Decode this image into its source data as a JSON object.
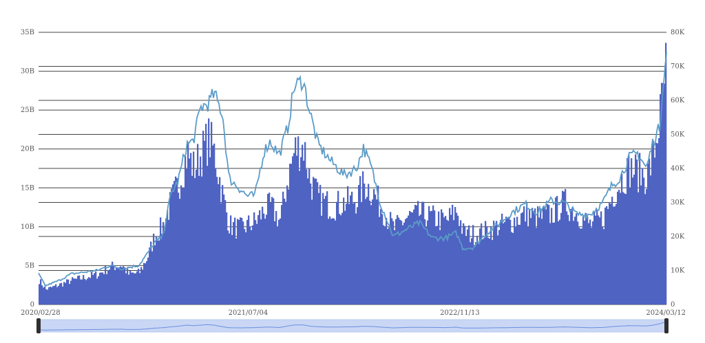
{
  "chart_data": {
    "type": "bar",
    "title": "",
    "xlabel": "",
    "ylabel": "",
    "left_axis": {
      "ylim": [
        0,
        35000000000
      ],
      "ticks": [
        "0",
        "5B",
        "10B",
        "15B",
        "20B",
        "25B",
        "30B",
        "35B"
      ]
    },
    "right_axis": {
      "ylim": [
        0,
        80000
      ],
      "ticks": [
        "0",
        "10K",
        "20K",
        "30K",
        "40K",
        "50K",
        "60K",
        "70K",
        "80K"
      ]
    },
    "x_tick_labels": [
      "2020/02/28",
      "2021/07/04",
      "2022/11/13",
      "2024/03/12"
    ],
    "x_range": [
      "2020/02/28",
      "2024/03/12"
    ],
    "grid": true,
    "colors": {
      "bars": "#4f63c2",
      "line": "#5b9bc8",
      "slider_fill": "#c9d7f5",
      "slider_line": "#6b8ee0",
      "handle": "#2f2f2f"
    },
    "series": [
      {
        "kind": "bar",
        "axis": "left",
        "points": [
          [
            "2020/02/28",
            3200000000.0
          ],
          [
            "2020/03/15",
            2000000000.0
          ],
          [
            "2020/04/15",
            2600000000.0
          ],
          [
            "2020/05/15",
            3200000000.0
          ],
          [
            "2020/06/15",
            3600000000.0
          ],
          [
            "2020/07/15",
            4000000000.0
          ],
          [
            "2020/08/15",
            5000000000.0
          ],
          [
            "2020/09/10",
            5200000000.0
          ],
          [
            "2020/09/25",
            4000000000.0
          ],
          [
            "2020/10/20",
            4200000000.0
          ],
          [
            "2020/11/10",
            6500000000.0
          ],
          [
            "2020/11/25",
            9000000000.0
          ],
          [
            "2020/12/15",
            10500000000.0
          ],
          [
            "2021/01/05",
            14000000000.0
          ],
          [
            "2021/01/20",
            16000000000.0
          ],
          [
            "2021/02/10",
            20000000000.0
          ],
          [
            "2021/02/25",
            18000000000.0
          ],
          [
            "2021/03/15",
            20000000000.0
          ],
          [
            "2021/04/01",
            22000000000.0
          ],
          [
            "2021/04/15",
            20000000000.0
          ],
          [
            "2021/05/05",
            14000000000.0
          ],
          [
            "2021/05/20",
            10500000000.0
          ],
          [
            "2021/06/15",
            10000000000.0
          ],
          [
            "2021/07/01",
            10500000000.0
          ],
          [
            "2021/07/20",
            11000000000.0
          ],
          [
            "2021/08/10",
            12500000000.0
          ],
          [
            "2021/08/25",
            13000000000.0
          ],
          [
            "2021/09/15",
            11000000000.0
          ],
          [
            "2021/10/05",
            17000000000.0
          ],
          [
            "2021/10/20",
            20500000000.0
          ],
          [
            "2021/11/10",
            21000000000.0
          ],
          [
            "2021/11/25",
            16500000000.0
          ],
          [
            "2021/12/15",
            14000000000.0
          ],
          [
            "2022/01/15",
            13000000000.0
          ],
          [
            "2022/02/15",
            13500000000.0
          ],
          [
            "2022/03/15",
            14000000000.0
          ],
          [
            "2022/04/01",
            16000000000.0
          ],
          [
            "2022/04/20",
            15000000000.0
          ],
          [
            "2022/05/10",
            13000000000.0
          ],
          [
            "2022/06/10",
            10000000000.0
          ],
          [
            "2022/07/10",
            11500000000.0
          ],
          [
            "2022/08/10",
            12000000000.0
          ],
          [
            "2022/09/10",
            11500000000.0
          ],
          [
            "2022/10/10",
            11000000000.0
          ],
          [
            "2022/11/05",
            12500000000.0
          ],
          [
            "2022/11/20",
            9500000000.0
          ],
          [
            "2022/12/15",
            9300000000.0
          ],
          [
            "2023/01/15",
            9800000000.0
          ],
          [
            "2023/02/15",
            10500000000.0
          ],
          [
            "2023/03/15",
            11000000000.0
          ],
          [
            "2023/04/15",
            12000000000.0
          ],
          [
            "2023/05/15",
            11500000000.0
          ],
          [
            "2023/06/15",
            12000000000.0
          ],
          [
            "2023/07/15",
            13500000000.0
          ],
          [
            "2023/08/15",
            12000000000.0
          ],
          [
            "2023/09/15",
            10500000000.0
          ],
          [
            "2023/10/15",
            11500000000.0
          ],
          [
            "2023/11/05",
            14500000000.0
          ],
          [
            "2023/11/25",
            16500000000.0
          ],
          [
            "2023/12/15",
            18000000000.0
          ],
          [
            "2024/01/05",
            17500000000.0
          ],
          [
            "2024/01/25",
            17000000000.0
          ],
          [
            "2024/02/10",
            20000000000.0
          ],
          [
            "2024/02/25",
            25000000000.0
          ],
          [
            "2024/03/05",
            29000000000.0
          ],
          [
            "2024/03/12",
            33000000000.0
          ]
        ]
      },
      {
        "kind": "line",
        "axis": "right",
        "points": [
          [
            "2020/02/28",
            9000
          ],
          [
            "2020/03/15",
            5500
          ],
          [
            "2020/04/15",
            7000
          ],
          [
            "2020/05/15",
            9000
          ],
          [
            "2020/06/15",
            9500
          ],
          [
            "2020/07/15",
            10000
          ],
          [
            "2020/08/15",
            11500
          ],
          [
            "2020/09/10",
            10500
          ],
          [
            "2020/10/20",
            11500
          ],
          [
            "2020/11/10",
            15000
          ],
          [
            "2020/11/25",
            18000
          ],
          [
            "2020/12/15",
            20000
          ],
          [
            "2021/01/05",
            33000
          ],
          [
            "2021/01/20",
            36000
          ],
          [
            "2021/02/10",
            47000
          ],
          [
            "2021/02/25",
            48000
          ],
          [
            "2021/03/15",
            58000
          ],
          [
            "2021/04/01",
            59000
          ],
          [
            "2021/04/15",
            62000
          ],
          [
            "2021/05/05",
            56000
          ],
          [
            "2021/05/20",
            37000
          ],
          [
            "2021/06/15",
            34000
          ],
          [
            "2021/07/01",
            32000
          ],
          [
            "2021/07/20",
            32000
          ],
          [
            "2021/08/10",
            45000
          ],
          [
            "2021/08/25",
            48000
          ],
          [
            "2021/09/15",
            44000
          ],
          [
            "2021/10/05",
            52000
          ],
          [
            "2021/10/20",
            64000
          ],
          [
            "2021/11/10",
            66000
          ],
          [
            "2021/11/25",
            57000
          ],
          [
            "2021/12/15",
            47000
          ],
          [
            "2022/01/15",
            42000
          ],
          [
            "2022/02/15",
            38000
          ],
          [
            "2022/03/15",
            40000
          ],
          [
            "2022/04/01",
            46000
          ],
          [
            "2022/04/20",
            40000
          ],
          [
            "2022/05/10",
            30000
          ],
          [
            "2022/06/10",
            20000
          ],
          [
            "2022/07/10",
            22000
          ],
          [
            "2022/08/10",
            24000
          ],
          [
            "2022/09/10",
            19500
          ],
          [
            "2022/10/10",
            19500
          ],
          [
            "2022/11/05",
            21000
          ],
          [
            "2022/11/20",
            16500
          ],
          [
            "2022/12/15",
            16800
          ],
          [
            "2023/01/15",
            21000
          ],
          [
            "2023/02/15",
            24000
          ],
          [
            "2023/03/15",
            27000
          ],
          [
            "2023/04/15",
            29500
          ],
          [
            "2023/05/15",
            27000
          ],
          [
            "2023/06/15",
            30500
          ],
          [
            "2023/07/15",
            30000
          ],
          [
            "2023/08/15",
            26500
          ],
          [
            "2023/09/15",
            26500
          ],
          [
            "2023/10/15",
            30000
          ],
          [
            "2023/11/05",
            35000
          ],
          [
            "2023/11/25",
            37500
          ],
          [
            "2023/12/15",
            43000
          ],
          [
            "2024/01/05",
            44500
          ],
          [
            "2024/01/25",
            40000
          ],
          [
            "2024/02/10",
            48000
          ],
          [
            "2024/02/25",
            52000
          ],
          [
            "2024/03/05",
            67000
          ],
          [
            "2024/03/12",
            73000
          ]
        ]
      }
    ]
  }
}
